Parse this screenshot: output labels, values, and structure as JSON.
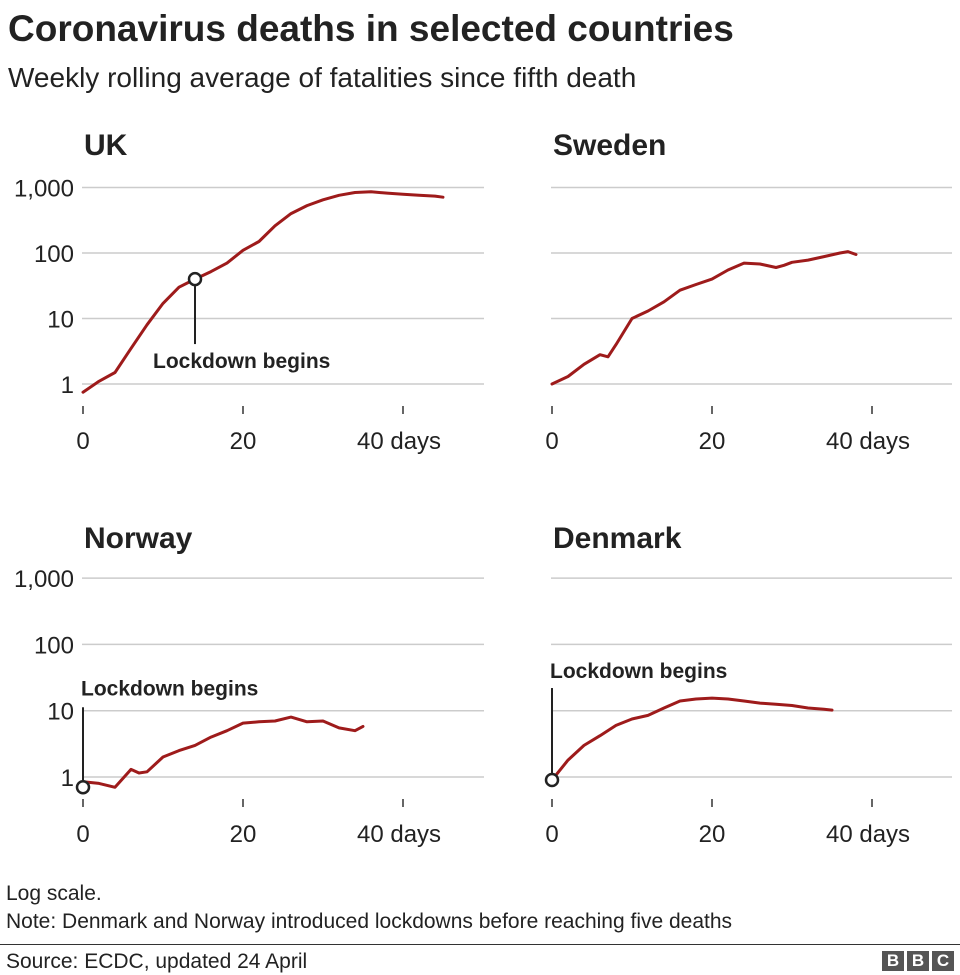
{
  "title": "Coronavirus deaths in selected countries",
  "subtitle": "Weekly rolling average of fatalities since fifth death",
  "notes": [
    "Log scale.",
    "Note: Denmark and Norway introduced lockdowns before reaching five deaths"
  ],
  "source": "Source: ECDC, updated 24 April",
  "logo_letters": [
    "B",
    "B",
    "C"
  ],
  "colors": {
    "line": "#9e1b1b",
    "grid": "#cccccc",
    "text": "#222222"
  },
  "chart_data": [
    {
      "type": "line",
      "title": "UK",
      "scale": "log",
      "xlim": [
        0,
        48
      ],
      "ylim": [
        0.75,
        1300
      ],
      "x_ticks": [
        0,
        20,
        40
      ],
      "x_tick_labels": [
        "0",
        "20",
        "40 days"
      ],
      "y_ticks": [
        1,
        10,
        100,
        1000
      ],
      "y_tick_labels": [
        "1",
        "10",
        "100",
        "1,000"
      ],
      "series": [
        {
          "x": [
            0,
            2,
            4,
            6,
            8,
            10,
            12,
            14,
            16,
            18,
            20,
            22,
            24,
            26,
            28,
            30,
            32,
            34,
            36,
            38,
            40,
            42,
            44,
            45
          ],
          "y": [
            0.75,
            1.1,
            1.5,
            3.5,
            8,
            17,
            30,
            40,
            52,
            70,
            110,
            150,
            260,
            400,
            530,
            650,
            760,
            840,
            860,
            820,
            790,
            760,
            740,
            710
          ]
        }
      ],
      "annotation": {
        "label": "Lockdown begins",
        "x": 14,
        "y": 40
      }
    },
    {
      "type": "line",
      "title": "Sweden",
      "scale": "log",
      "xlim": [
        0,
        48
      ],
      "ylim": [
        0.75,
        1300
      ],
      "x_ticks": [
        0,
        20,
        40
      ],
      "x_tick_labels": [
        "0",
        "20",
        "40 days"
      ],
      "y_ticks": [
        1,
        10,
        100,
        1000
      ],
      "y_tick_labels": [],
      "series": [
        {
          "x": [
            0,
            2,
            4,
            6,
            7,
            8,
            10,
            12,
            14,
            16,
            18,
            20,
            22,
            24,
            26,
            28,
            29,
            30,
            32,
            34,
            36,
            37,
            38
          ],
          "y": [
            1,
            1.3,
            2,
            2.8,
            2.6,
            4,
            10,
            13,
            18,
            27,
            33,
            40,
            55,
            70,
            68,
            60,
            65,
            72,
            78,
            88,
            100,
            105,
            95
          ]
        }
      ]
    },
    {
      "type": "line",
      "title": "Norway",
      "scale": "log",
      "xlim": [
        0,
        48
      ],
      "ylim": [
        0.6,
        1300
      ],
      "x_ticks": [
        0,
        20,
        40
      ],
      "x_tick_labels": [
        "0",
        "20",
        "40 days"
      ],
      "y_ticks": [
        1,
        10,
        100,
        1000
      ],
      "y_tick_labels": [
        "1",
        "10",
        "100",
        "1,000"
      ],
      "series": [
        {
          "x": [
            0,
            2,
            4,
            6,
            7,
            8,
            10,
            12,
            14,
            16,
            18,
            20,
            22,
            24,
            26,
            28,
            30,
            32,
            34,
            35
          ],
          "y": [
            0.85,
            0.8,
            0.7,
            1.3,
            1.15,
            1.2,
            2,
            2.5,
            3,
            4,
            5,
            6.5,
            6.8,
            7,
            8,
            6.8,
            7,
            5.5,
            5,
            5.8
          ]
        }
      ],
      "annotation": {
        "label": "Lockdown begins",
        "x": 0,
        "y": 0.7
      }
    },
    {
      "type": "line",
      "title": "Denmark",
      "scale": "log",
      "xlim": [
        0,
        48
      ],
      "ylim": [
        0.6,
        1300
      ],
      "x_ticks": [
        0,
        20,
        40
      ],
      "x_tick_labels": [
        "0",
        "20",
        "40 days"
      ],
      "y_ticks": [
        1,
        10,
        100,
        1000
      ],
      "y_tick_labels": [],
      "series": [
        {
          "x": [
            0,
            2,
            4,
            6,
            8,
            10,
            12,
            14,
            16,
            18,
            20,
            22,
            24,
            26,
            28,
            30,
            32,
            34,
            35
          ],
          "y": [
            0.9,
            1.8,
            3,
            4.2,
            6,
            7.5,
            8.5,
            11,
            14,
            15,
            15.5,
            15,
            14,
            13,
            12.5,
            12,
            11,
            10.5,
            10.2
          ]
        }
      ],
      "annotation": {
        "label": "Lockdown begins",
        "x": 0,
        "y": 0.9
      }
    }
  ]
}
